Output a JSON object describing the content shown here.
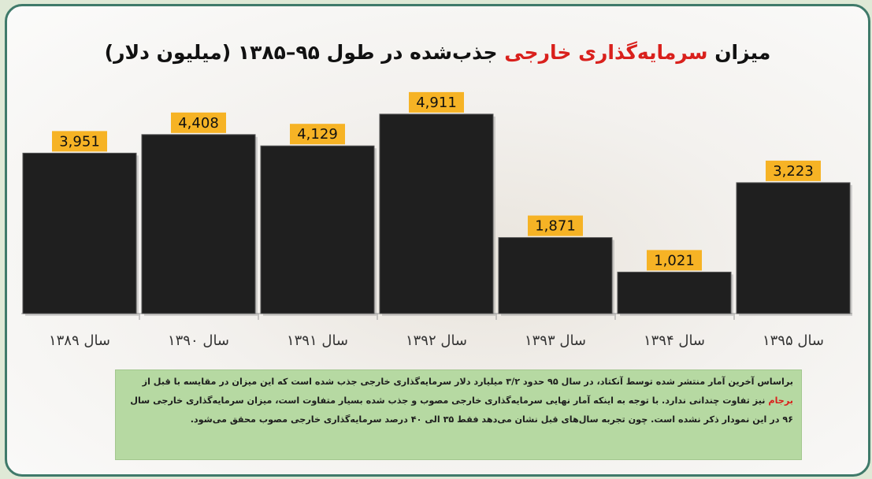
{
  "title": {
    "part1": "میزان ",
    "highlight": "سرمایه‌گذاری خارجی",
    "part2": " جذب‌شده در طول ۹۵–۱۳۸۵ (میلیون دلار)"
  },
  "chart_data": {
    "type": "bar",
    "categories": [
      "سال ۱۳۸۹",
      "سال ۱۳۹۰",
      "سال ۱۳۹۱",
      "سال ۱۳۹۲",
      "سال ۱۳۹۳",
      "سال ۱۳۹۴",
      "سال ۱۳۹۵"
    ],
    "values": [
      3951,
      4408,
      4129,
      4911,
      1871,
      1021,
      3223
    ],
    "value_labels": [
      "3,951",
      "4,408",
      "4,129",
      "4,911",
      "1,871",
      "1,021",
      "3,223"
    ],
    "ylim": [
      0,
      5200
    ],
    "grid": false,
    "bar_color": "#1f1f1f",
    "label_bg_color": "#f6b325",
    "title_highlight_color": "#d9201c"
  },
  "note": {
    "text1": "براساس آخرین آمار منتشر شده توسط آنکتاد، در سال ۹۵ حدود ۳/۲ میلیارد دلار سرمایه‌گذاری خارجی جذب شده است که این میزان در مقایسه با قبل از ",
    "highlight": "برجام",
    "text2": " نیز تفاوت چندانی ندارد. با توجه به اینکه آمار نهایی سرمایه‌گذاری خارجی مصوب و جذب شده بسیار متفاوت است، میزان سرمایه‌گذاری خارجی سال ۹۶ در این نمودار ذکر نشده است. چون تجربه سال‌های قبل نشان می‌دهد فقط ۳۵ الی ۴۰ درصد سرمایه‌گذاری خارجی مصوب محقق می‌شود.",
    "bg_color": "#b6d9a2"
  }
}
